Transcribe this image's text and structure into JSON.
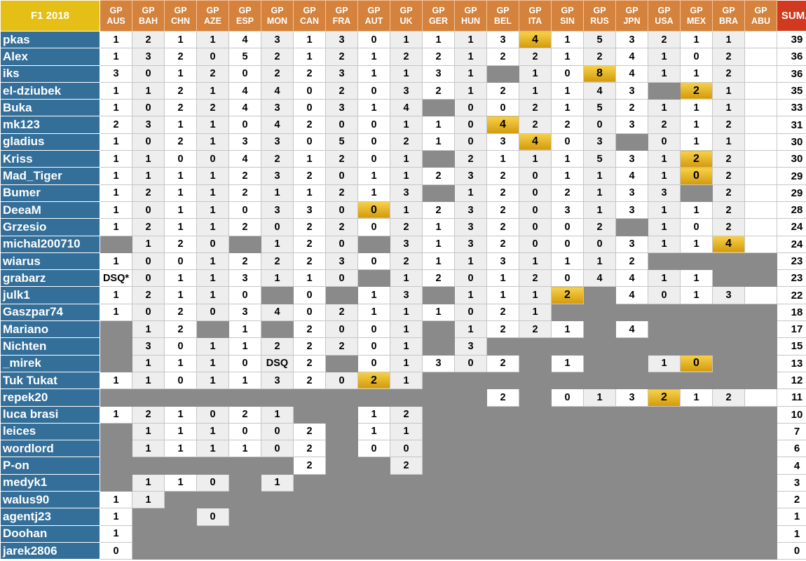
{
  "table": {
    "title": "F1 2018",
    "sum_label": "SUMA",
    "races": [
      {
        "gp": "GP",
        "code": "AUS"
      },
      {
        "gp": "GP",
        "code": "BAH"
      },
      {
        "gp": "GP",
        "code": "CHN"
      },
      {
        "gp": "GP",
        "code": "AZE"
      },
      {
        "gp": "GP",
        "code": "ESP"
      },
      {
        "gp": "GP",
        "code": "MON"
      },
      {
        "gp": "GP",
        "code": "CAN"
      },
      {
        "gp": "GP",
        "code": "FRA"
      },
      {
        "gp": "GP",
        "code": "AUT"
      },
      {
        "gp": "GP",
        "code": "UK"
      },
      {
        "gp": "GP",
        "code": "GER"
      },
      {
        "gp": "GP",
        "code": "HUN"
      },
      {
        "gp": "GP",
        "code": "BEL"
      },
      {
        "gp": "GP",
        "code": "ITA"
      },
      {
        "gp": "GP",
        "code": "SIN"
      },
      {
        "gp": "GP",
        "code": "RUS"
      },
      {
        "gp": "GP",
        "code": "JPN"
      },
      {
        "gp": "GP",
        "code": "USA"
      },
      {
        "gp": "GP",
        "code": "MEX"
      },
      {
        "gp": "GP",
        "code": "BRA"
      },
      {
        "gp": "GP",
        "code": "ABU"
      }
    ],
    "rows": [
      {
        "name": "pkas",
        "points": [
          "1",
          "2",
          "1",
          "1",
          "4",
          "3",
          "1",
          "3",
          "0",
          "1",
          "1",
          "1",
          "3",
          "4",
          "1",
          "5",
          "3",
          "2",
          "1",
          "1",
          ""
        ],
        "best": [
          13
        ],
        "total": "39"
      },
      {
        "name": "Alex",
        "points": [
          "1",
          "3",
          "2",
          "0",
          "5",
          "2",
          "1",
          "2",
          "1",
          "2",
          "2",
          "1",
          "2",
          "2",
          "1",
          "2",
          "4",
          "1",
          "0",
          "2",
          ""
        ],
        "best": [],
        "total": "36"
      },
      {
        "name": "iks",
        "points": [
          "3",
          "0",
          "1",
          "2",
          "0",
          "2",
          "2",
          "3",
          "1",
          "1",
          "3",
          "1",
          null,
          "1",
          "0",
          "8",
          "4",
          "1",
          "1",
          "2",
          ""
        ],
        "best": [
          15
        ],
        "total": "36"
      },
      {
        "name": "el-dziubek",
        "points": [
          "1",
          "1",
          "2",
          "1",
          "4",
          "4",
          "0",
          "2",
          "0",
          "3",
          "2",
          "1",
          "2",
          "1",
          "1",
          "4",
          "3",
          null,
          "2",
          "1",
          ""
        ],
        "best": [
          18
        ],
        "total": "35"
      },
      {
        "name": "Buka",
        "points": [
          "1",
          "0",
          "2",
          "2",
          "4",
          "3",
          "0",
          "3",
          "1",
          "4",
          null,
          "0",
          "0",
          "2",
          "1",
          "5",
          "2",
          "1",
          "1",
          "1",
          ""
        ],
        "best": [],
        "total": "33"
      },
      {
        "name": "mk123",
        "points": [
          "2",
          "3",
          "1",
          "1",
          "0",
          "4",
          "2",
          "0",
          "0",
          "1",
          "1",
          "0",
          "4",
          "2",
          "2",
          "0",
          "3",
          "2",
          "1",
          "2",
          ""
        ],
        "best": [
          12
        ],
        "total": "31"
      },
      {
        "name": "gladius",
        "points": [
          "1",
          "0",
          "2",
          "1",
          "3",
          "3",
          "0",
          "5",
          "0",
          "2",
          "1",
          "0",
          "3",
          "4",
          "0",
          "3",
          null,
          "0",
          "1",
          "1",
          ""
        ],
        "best": [
          13
        ],
        "total": "30"
      },
      {
        "name": "Kriss",
        "points": [
          "1",
          "1",
          "0",
          "0",
          "4",
          "2",
          "1",
          "2",
          "0",
          "1",
          null,
          "2",
          "1",
          "1",
          "1",
          "5",
          "3",
          "1",
          "2",
          "2",
          ""
        ],
        "best": [
          18
        ],
        "total": "30"
      },
      {
        "name": "Mad_Tiger",
        "points": [
          "1",
          "1",
          "1",
          "1",
          "2",
          "3",
          "2",
          "0",
          "1",
          "1",
          "2",
          "3",
          "2",
          "0",
          "1",
          "1",
          "4",
          "1",
          "0",
          "2",
          ""
        ],
        "best": [
          18
        ],
        "total": "29"
      },
      {
        "name": "Bumer",
        "points": [
          "1",
          "2",
          "1",
          "1",
          "2",
          "1",
          "1",
          "2",
          "1",
          "3",
          null,
          "1",
          "2",
          "0",
          "2",
          "1",
          "3",
          "3",
          null,
          "2",
          ""
        ],
        "best": [],
        "total": "29"
      },
      {
        "name": "DeeaM",
        "points": [
          "1",
          "0",
          "1",
          "1",
          "0",
          "3",
          "3",
          "0",
          "0",
          "1",
          "2",
          "3",
          "2",
          "0",
          "3",
          "1",
          "3",
          "1",
          "1",
          "2",
          ""
        ],
        "best": [
          8
        ],
        "total": "28"
      },
      {
        "name": "Grzesio",
        "points": [
          "1",
          "2",
          "1",
          "1",
          "2",
          "0",
          "2",
          "2",
          "0",
          "2",
          "1",
          "3",
          "2",
          "0",
          "0",
          "2",
          null,
          "1",
          "0",
          "2",
          ""
        ],
        "best": [],
        "total": "24"
      },
      {
        "name": "michal200710",
        "points": [
          null,
          "1",
          "2",
          "0",
          null,
          "1",
          "2",
          "0",
          null,
          "3",
          "1",
          "3",
          "2",
          "0",
          "0",
          "0",
          "3",
          "1",
          "1",
          "4",
          ""
        ],
        "best": [
          19
        ],
        "total": "24"
      },
      {
        "name": "wiarus",
        "points": [
          "1",
          "0",
          "0",
          "1",
          "2",
          "2",
          "2",
          "3",
          "0",
          "2",
          "1",
          "1",
          "3",
          "1",
          "1",
          "1",
          "2",
          null,
          null,
          null,
          null
        ],
        "best": [],
        "total": "23"
      },
      {
        "name": "grabarz",
        "points": [
          "DSQ*",
          "0",
          "1",
          "1",
          "3",
          "1",
          "1",
          "0",
          null,
          "1",
          "2",
          "0",
          "1",
          "2",
          "0",
          "4",
          "4",
          "1",
          "1",
          null,
          null
        ],
        "best": [],
        "total": "23"
      },
      {
        "name": "julk1",
        "points": [
          "1",
          "2",
          "1",
          "1",
          "0",
          null,
          "0",
          null,
          "1",
          "3",
          null,
          "1",
          "1",
          "1",
          "2",
          null,
          "4",
          "0",
          "1",
          "3",
          ""
        ],
        "best": [
          14
        ],
        "total": "22"
      },
      {
        "name": "Gaszpar74",
        "points": [
          "1",
          "0",
          "2",
          "0",
          "3",
          "4",
          "0",
          "2",
          "1",
          "1",
          "1",
          "0",
          "2",
          "1",
          null,
          null,
          null,
          null,
          null,
          null,
          null
        ],
        "best": [],
        "total": "18"
      },
      {
        "name": "Mariano",
        "points": [
          null,
          "1",
          "2",
          null,
          "1",
          null,
          "2",
          "0",
          "0",
          "1",
          null,
          "1",
          "2",
          "2",
          "1",
          null,
          "4",
          null,
          null,
          null,
          null
        ],
        "best": [],
        "total": "17"
      },
      {
        "name": "Nichten",
        "points": [
          null,
          "3",
          "0",
          "1",
          "1",
          "2",
          "2",
          "2",
          "0",
          "1",
          null,
          "3",
          null,
          null,
          null,
          null,
          null,
          null,
          null,
          null,
          null
        ],
        "best": [],
        "total": "15"
      },
      {
        "name": "_mirek",
        "points": [
          null,
          "1",
          "1",
          "1",
          "0",
          "DSQ",
          "2",
          null,
          "0",
          "1",
          "3",
          "0",
          "2",
          null,
          "1",
          null,
          null,
          "1",
          "0",
          null,
          null
        ],
        "best": [
          18
        ],
        "total": "13"
      },
      {
        "name": "Tuk Tukat",
        "points": [
          "1",
          "1",
          "0",
          "1",
          "1",
          "3",
          "2",
          "0",
          "2",
          "1",
          null,
          null,
          null,
          null,
          null,
          null,
          null,
          null,
          null,
          null,
          null
        ],
        "best": [
          8
        ],
        "total": "12"
      },
      {
        "name": "repek20",
        "points": [
          null,
          null,
          null,
          null,
          null,
          null,
          null,
          null,
          null,
          null,
          null,
          null,
          "2",
          null,
          "0",
          "1",
          "3",
          "2",
          "1",
          "2",
          ""
        ],
        "best": [
          17
        ],
        "total": "11"
      },
      {
        "name": "luca brasi",
        "points": [
          "1",
          "2",
          "1",
          "0",
          "2",
          "1",
          null,
          null,
          "1",
          "2",
          null,
          null,
          null,
          null,
          null,
          null,
          null,
          null,
          null,
          null,
          null
        ],
        "best": [],
        "total": "10"
      },
      {
        "name": "leices",
        "points": [
          null,
          "1",
          "1",
          "1",
          "0",
          "0",
          "2",
          null,
          "1",
          "1",
          null,
          null,
          null,
          null,
          null,
          null,
          null,
          null,
          null,
          null,
          null
        ],
        "best": [],
        "total": "7"
      },
      {
        "name": "wordlord",
        "points": [
          null,
          "1",
          "1",
          "1",
          "1",
          "0",
          "2",
          null,
          "0",
          "0",
          null,
          null,
          null,
          null,
          null,
          null,
          null,
          null,
          null,
          null,
          null
        ],
        "best": [],
        "total": "6"
      },
      {
        "name": "P-on",
        "points": [
          null,
          null,
          null,
          null,
          null,
          null,
          "2",
          null,
          null,
          "2",
          null,
          null,
          null,
          null,
          null,
          null,
          null,
          null,
          null,
          null,
          null
        ],
        "best": [],
        "total": "4"
      },
      {
        "name": "medyk1",
        "points": [
          null,
          "1",
          "1",
          "0",
          null,
          "1",
          null,
          null,
          null,
          null,
          null,
          null,
          null,
          null,
          null,
          null,
          null,
          null,
          null,
          null,
          null
        ],
        "best": [],
        "total": "3"
      },
      {
        "name": "walus90",
        "points": [
          "1",
          "1",
          null,
          null,
          null,
          null,
          null,
          null,
          null,
          null,
          null,
          null,
          null,
          null,
          null,
          null,
          null,
          null,
          null,
          null,
          null
        ],
        "best": [],
        "total": "2"
      },
      {
        "name": "agentj23",
        "points": [
          "1",
          null,
          null,
          "0",
          null,
          null,
          null,
          null,
          null,
          null,
          null,
          null,
          null,
          null,
          null,
          null,
          null,
          null,
          null,
          null,
          null
        ],
        "best": [],
        "total": "1"
      },
      {
        "name": "Doohan",
        "points": [
          "1",
          null,
          null,
          null,
          null,
          null,
          null,
          null,
          null,
          null,
          null,
          null,
          null,
          null,
          null,
          null,
          null,
          null,
          null,
          null,
          null
        ],
        "best": [],
        "total": "1"
      },
      {
        "name": "jarek2806",
        "points": [
          "0",
          null,
          null,
          null,
          null,
          null,
          null,
          null,
          null,
          null,
          null,
          null,
          null,
          null,
          null,
          null,
          null,
          null,
          null,
          null,
          null
        ],
        "best": [],
        "total": "0"
      }
    ]
  }
}
